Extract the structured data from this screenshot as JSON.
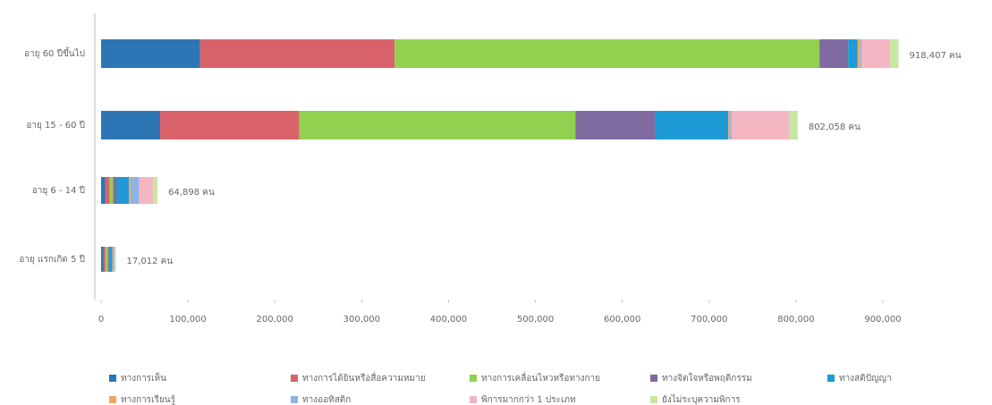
{
  "chart_data": {
    "type": "stacked_barh",
    "categories": [
      "อายุ 60 ปีขึ้นไป",
      "อายุ 15 - 60 ปี",
      "อายุ 6 - 14 ปี",
      "อายุ แรกเกิด 5 ปี"
    ],
    "series": [
      {
        "name": "ทางการเห็น",
        "color": "#2e75b6",
        "values": [
          114000,
          68000,
          5000,
          3000
        ]
      },
      {
        "name": "ทางการได้ยินหรือสื่อความหมาย",
        "color": "#d9626a",
        "values": [
          224000,
          160000,
          5000,
          2000
        ]
      },
      {
        "name": "ทางการเคลื่อนไหวหรือทางกาย",
        "color": "#92d050",
        "values": [
          489000,
          318000,
          4000,
          3000
        ]
      },
      {
        "name": "ทางจิตใจหรือพฤติกรรม",
        "color": "#7f6aa0",
        "values": [
          33000,
          92000,
          4000,
          2000
        ]
      },
      {
        "name": "ทางสติปัญญา",
        "color": "#1e9ad6",
        "values": [
          11000,
          84000,
          14000,
          3000
        ]
      },
      {
        "name": "ทางการเรียนรู้",
        "color": "#f4a460",
        "values": [
          3000,
          2000,
          2000,
          1000
        ]
      },
      {
        "name": "ทางออทิสติก",
        "color": "#8fb4e3",
        "values": [
          2000,
          2000,
          10000,
          1000
        ]
      },
      {
        "name": "พิการมากกว่า 1 ประเภท",
        "color": "#f4b6c2",
        "values": [
          32000,
          66000,
          16000,
          1000
        ]
      },
      {
        "name": "ยังไม่ระบุความพิการ",
        "color": "#c6e7a0",
        "values": [
          10000,
          10000,
          5000,
          1000
        ]
      }
    ],
    "total_labels": [
      "918,407 คน",
      "802,058 คน",
      "64,898 คน",
      "17,012 คน"
    ],
    "xlim": [
      0,
      900000
    ],
    "xticks": [
      0,
      {
        "value": 100000,
        "label": "100,000"
      },
      {
        "value": 200000,
        "label": "200,000"
      },
      {
        "value": 300000,
        "label": "300,000"
      },
      {
        "value": 400000,
        "label": "400,000"
      },
      {
        "value": 500000,
        "label": "500,000"
      },
      {
        "value": 600000,
        "label": "600,000"
      },
      {
        "value": 700000,
        "label": "700,000"
      },
      {
        "value": 800000,
        "label": "800,000"
      },
      {
        "value": 900000,
        "label": "900,000"
      }
    ],
    "legend": "bottom"
  }
}
